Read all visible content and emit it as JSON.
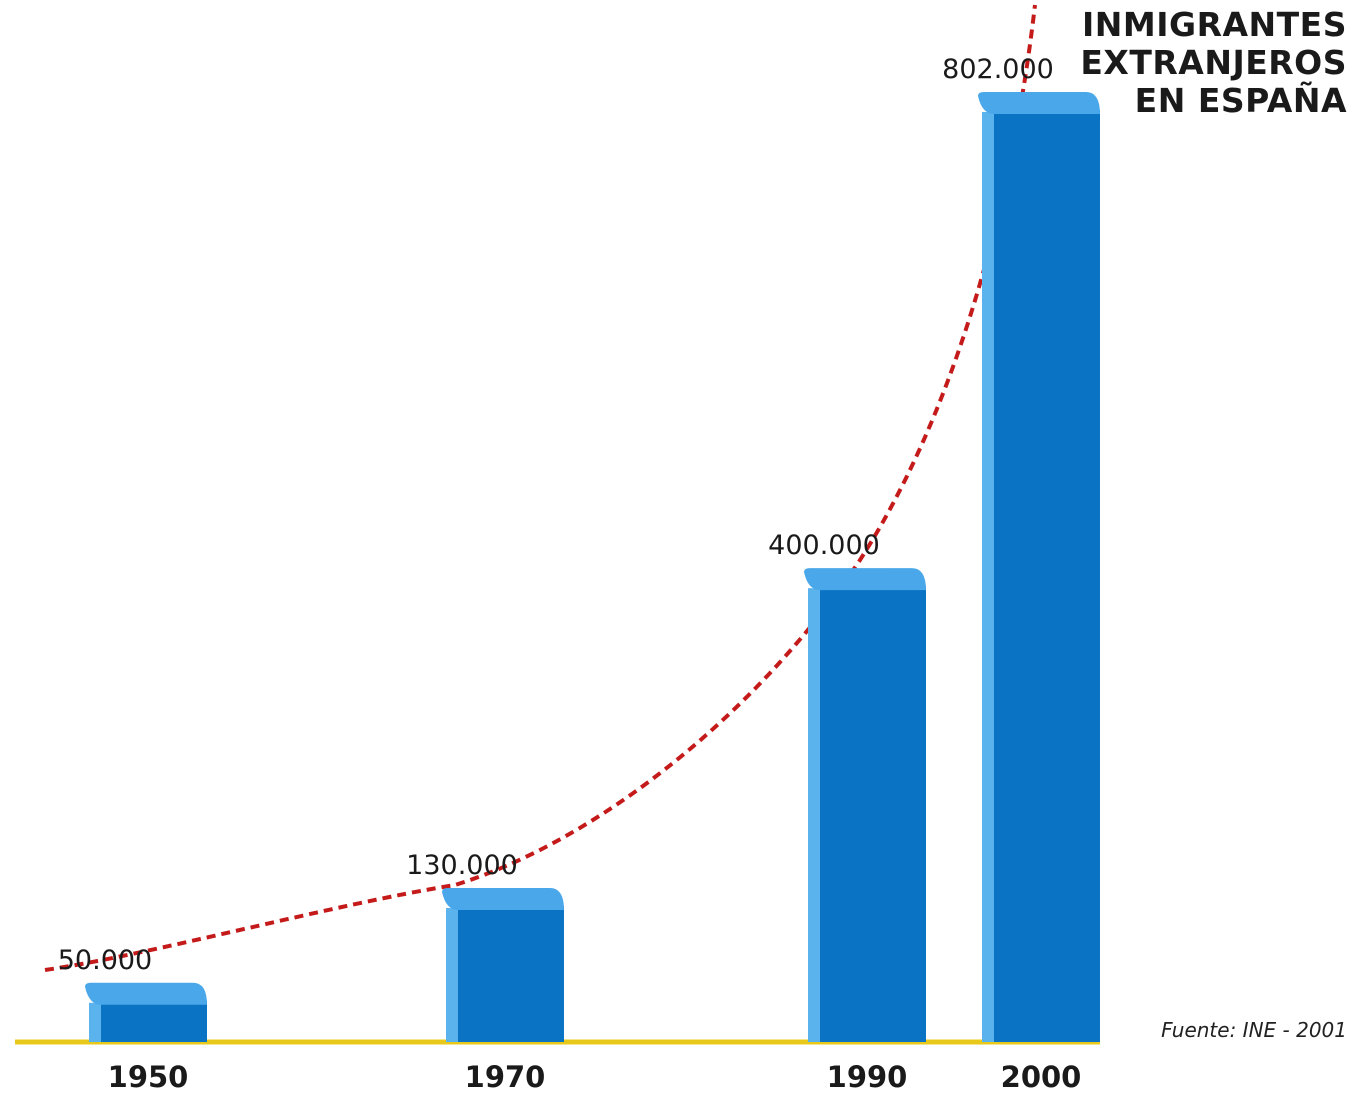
{
  "title_lines": [
    "INMIGRANTES",
    "EXTRANJEROS",
    "EN ESPAÑA"
  ],
  "source": "Fuente: INE - 2001",
  "colors": {
    "bar": "#0a73c4",
    "bar_top": "#4aa8ea",
    "bar_shadow": "#5bb3ee",
    "baseline": "#e8c81a",
    "trend": "#c41a1a",
    "text": "#1a1a1a"
  },
  "chart_data": {
    "type": "bar",
    "title": "INMIGRANTES EXTRANJEROS EN ESPAÑA",
    "categories": [
      "1950",
      "1970",
      "1990",
      "2000"
    ],
    "values": [
      50000,
      130000,
      400000,
      802000
    ],
    "value_labels": [
      "50.000",
      "130.000",
      "400.000",
      "802.000"
    ],
    "ylim": [
      0,
      802000
    ],
    "trend_line": "dashed exponential curve",
    "grid": false,
    "legend": "none"
  }
}
